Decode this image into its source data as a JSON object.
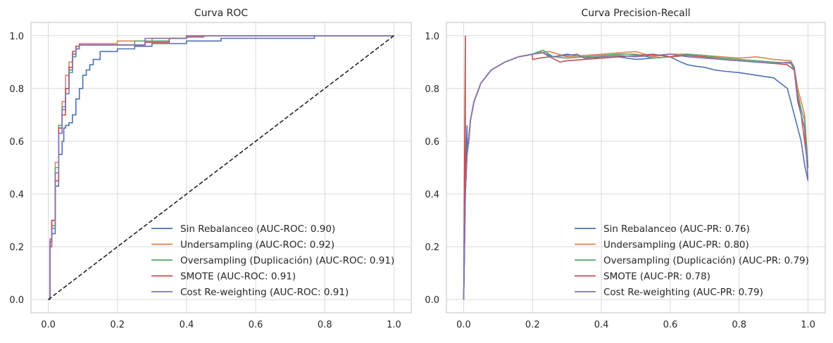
{
  "colors": {
    "blue": "#4c72b0",
    "orange": "#dd8452",
    "green": "#55a868",
    "red": "#c44e52",
    "purple": "#8172b3",
    "grid": "#d9d9d9",
    "diagonal": "#222222"
  },
  "chart_data": [
    {
      "type": "line",
      "title": "Curva ROC",
      "xlabel": "",
      "ylabel": "",
      "xlim": [
        -0.05,
        1.05
      ],
      "ylim": [
        -0.05,
        1.05
      ],
      "xticks": [
        "0.0",
        "0.2",
        "0.4",
        "0.6",
        "0.8",
        "1.0"
      ],
      "yticks": [
        "0.0",
        "0.2",
        "0.4",
        "0.6",
        "0.8",
        "1.0"
      ],
      "grid": true,
      "legend_position": "lower-right",
      "diagonal_reference": true,
      "series": [
        {
          "name": "Sin Rebalanceo (AUC-ROC: 0.90)",
          "color_key": "blue",
          "x": [
            0,
            0.005,
            0.005,
            0.01,
            0.01,
            0.02,
            0.02,
            0.03,
            0.03,
            0.04,
            0.04,
            0.045,
            0.045,
            0.05,
            0.05,
            0.06,
            0.06,
            0.07,
            0.07,
            0.08,
            0.08,
            0.09,
            0.09,
            0.1,
            0.1,
            0.11,
            0.11,
            0.12,
            0.12,
            0.13,
            0.13,
            0.15,
            0.15,
            0.2,
            0.2,
            0.25,
            0.25,
            0.3,
            0.3,
            0.4,
            0.4,
            0.5,
            0.5,
            0.77,
            0.77,
            1.0
          ],
          "y": [
            0,
            0,
            0.23,
            0.23,
            0.25,
            0.25,
            0.43,
            0.43,
            0.55,
            0.55,
            0.6,
            0.6,
            0.65,
            0.65,
            0.66,
            0.66,
            0.67,
            0.67,
            0.7,
            0.7,
            0.76,
            0.76,
            0.8,
            0.8,
            0.85,
            0.85,
            0.87,
            0.87,
            0.89,
            0.89,
            0.91,
            0.91,
            0.94,
            0.94,
            0.95,
            0.95,
            0.96,
            0.96,
            0.97,
            0.97,
            0.98,
            0.98,
            0.99,
            0.99,
            1.0,
            1.0
          ]
        },
        {
          "name": "Undersampling (AUC-ROC: 0.92)",
          "color_key": "orange",
          "x": [
            0,
            0.005,
            0.005,
            0.01,
            0.01,
            0.02,
            0.02,
            0.03,
            0.03,
            0.04,
            0.04,
            0.05,
            0.05,
            0.06,
            0.06,
            0.07,
            0.07,
            0.08,
            0.08,
            0.09,
            0.09,
            0.2,
            0.2,
            0.3,
            0.3,
            0.4,
            0.4,
            1.0
          ],
          "y": [
            0,
            0,
            0.23,
            0.23,
            0.3,
            0.3,
            0.52,
            0.52,
            0.65,
            0.65,
            0.75,
            0.75,
            0.85,
            0.85,
            0.9,
            0.9,
            0.93,
            0.93,
            0.95,
            0.95,
            0.97,
            0.97,
            0.98,
            0.98,
            0.99,
            0.99,
            1.0,
            1.0
          ]
        },
        {
          "name": "Oversampling (Duplicación) (AUC-ROC: 0.91)",
          "color_key": "green",
          "x": [
            0,
            0.005,
            0.005,
            0.01,
            0.01,
            0.02,
            0.02,
            0.03,
            0.03,
            0.04,
            0.04,
            0.05,
            0.05,
            0.06,
            0.06,
            0.07,
            0.07,
            0.08,
            0.08,
            0.09,
            0.09,
            0.25,
            0.25,
            0.35,
            0.35,
            0.4,
            0.4,
            1.0
          ],
          "y": [
            0,
            0,
            0.22,
            0.22,
            0.28,
            0.28,
            0.5,
            0.5,
            0.66,
            0.66,
            0.73,
            0.73,
            0.8,
            0.8,
            0.86,
            0.86,
            0.92,
            0.92,
            0.95,
            0.95,
            0.965,
            0.965,
            0.98,
            0.98,
            0.99,
            0.99,
            1.0,
            1.0
          ]
        },
        {
          "name": "SMOTE (AUC-ROC: 0.91)",
          "color_key": "red",
          "x": [
            0,
            0.005,
            0.005,
            0.01,
            0.01,
            0.02,
            0.02,
            0.03,
            0.03,
            0.04,
            0.04,
            0.05,
            0.05,
            0.06,
            0.06,
            0.07,
            0.07,
            0.08,
            0.08,
            0.09,
            0.09,
            0.28,
            0.28,
            0.35,
            0.35,
            0.4,
            0.4,
            0.45,
            0.45,
            1.0
          ],
          "y": [
            0,
            0,
            0.2,
            0.2,
            0.3,
            0.3,
            0.45,
            0.45,
            0.65,
            0.65,
            0.7,
            0.7,
            0.8,
            0.8,
            0.88,
            0.88,
            0.94,
            0.94,
            0.96,
            0.96,
            0.965,
            0.965,
            0.975,
            0.975,
            0.99,
            0.99,
            0.995,
            0.995,
            1.0,
            1.0
          ]
        },
        {
          "name": "Cost Re-weighting (AUC-ROC: 0.91)",
          "color_key": "purple",
          "x": [
            0,
            0.005,
            0.005,
            0.01,
            0.01,
            0.02,
            0.02,
            0.03,
            0.03,
            0.04,
            0.04,
            0.05,
            0.05,
            0.06,
            0.06,
            0.07,
            0.07,
            0.08,
            0.08,
            0.09,
            0.09,
            0.28,
            0.28,
            0.4,
            0.4,
            1.0
          ],
          "y": [
            0,
            0,
            0.22,
            0.22,
            0.27,
            0.27,
            0.48,
            0.48,
            0.63,
            0.63,
            0.72,
            0.72,
            0.78,
            0.78,
            0.87,
            0.87,
            0.93,
            0.93,
            0.95,
            0.95,
            0.965,
            0.965,
            0.99,
            0.99,
            1.0,
            1.0
          ]
        }
      ]
    },
    {
      "type": "line",
      "title": "Curva Precision-Recall",
      "xlabel": "",
      "ylabel": "",
      "xlim": [
        -0.05,
        1.05
      ],
      "ylim": [
        -0.05,
        1.05
      ],
      "xticks": [
        "0.0",
        "0.2",
        "0.4",
        "0.6",
        "0.8",
        "1.0"
      ],
      "yticks": [
        "0.0",
        "0.2",
        "0.4",
        "0.6",
        "0.8",
        "1.0"
      ],
      "grid": true,
      "legend_position": "lower-right",
      "diagonal_reference": false,
      "series": [
        {
          "name": "Sin Rebalanceo (AUC-PR: 0.76)",
          "color_key": "blue",
          "x": [
            0,
            0.005,
            0.01,
            0.01,
            0.015,
            0.02,
            0.03,
            0.05,
            0.08,
            0.12,
            0.16,
            0.2,
            0.22,
            0.24,
            0.26,
            0.3,
            0.35,
            0.4,
            0.45,
            0.5,
            0.55,
            0.6,
            0.63,
            0.65,
            0.67,
            0.7,
            0.73,
            0.76,
            0.8,
            0.85,
            0.9,
            0.92,
            0.94,
            0.95,
            0.96,
            0.97,
            0.98,
            0.99,
            1.0
          ],
          "y": [
            0,
            0.4,
            0.66,
            0.55,
            0.6,
            0.68,
            0.75,
            0.82,
            0.87,
            0.9,
            0.92,
            0.93,
            0.94,
            0.93,
            0.92,
            0.93,
            0.92,
            0.915,
            0.92,
            0.91,
            0.915,
            0.92,
            0.9,
            0.89,
            0.885,
            0.88,
            0.87,
            0.865,
            0.86,
            0.85,
            0.84,
            0.82,
            0.8,
            0.75,
            0.7,
            0.65,
            0.6,
            0.51,
            0.45
          ]
        },
        {
          "name": "Undersampling (AUC-PR: 0.80)",
          "color_key": "orange",
          "x": [
            0,
            0.005,
            0.01,
            0.02,
            0.03,
            0.05,
            0.08,
            0.12,
            0.16,
            0.2,
            0.22,
            0.25,
            0.3,
            0.35,
            0.4,
            0.45,
            0.5,
            0.55,
            0.6,
            0.65,
            0.7,
            0.75,
            0.8,
            0.85,
            0.9,
            0.95,
            0.96,
            0.97,
            0.98,
            0.99,
            1.0
          ],
          "y": [
            0,
            0.4,
            0.55,
            0.68,
            0.75,
            0.82,
            0.87,
            0.9,
            0.92,
            0.93,
            0.935,
            0.94,
            0.92,
            0.925,
            0.93,
            0.935,
            0.94,
            0.92,
            0.93,
            0.93,
            0.925,
            0.92,
            0.915,
            0.92,
            0.91,
            0.905,
            0.88,
            0.8,
            0.75,
            0.7,
            0.5
          ]
        },
        {
          "name": "Oversampling (Duplicación) (AUC-PR: 0.79)",
          "color_key": "green",
          "x": [
            0,
            0.005,
            0.01,
            0.02,
            0.03,
            0.05,
            0.08,
            0.12,
            0.16,
            0.2,
            0.23,
            0.26,
            0.3,
            0.35,
            0.4,
            0.45,
            0.5,
            0.55,
            0.6,
            0.65,
            0.7,
            0.75,
            0.8,
            0.85,
            0.9,
            0.95,
            0.96,
            0.97,
            0.98,
            0.99,
            1.0
          ],
          "y": [
            0,
            0.4,
            0.55,
            0.68,
            0.75,
            0.82,
            0.87,
            0.9,
            0.92,
            0.93,
            0.945,
            0.92,
            0.915,
            0.92,
            0.925,
            0.93,
            0.93,
            0.915,
            0.92,
            0.93,
            0.925,
            0.915,
            0.91,
            0.905,
            0.9,
            0.895,
            0.87,
            0.78,
            0.72,
            0.68,
            0.5
          ]
        },
        {
          "name": "SMOTE (AUC-PR: 0.78)",
          "color_key": "red",
          "x": [
            0,
            0.005,
            0.005,
            0.01,
            0.02,
            0.03,
            0.05,
            0.08,
            0.12,
            0.16,
            0.2,
            0.2,
            0.22,
            0.25,
            0.28,
            0.3,
            0.35,
            0.4,
            0.45,
            0.5,
            0.55,
            0.6,
            0.65,
            0.7,
            0.75,
            0.8,
            0.85,
            0.9,
            0.94,
            0.96,
            0.97,
            0.98,
            0.99,
            1.0
          ],
          "y": [
            0,
            1.0,
            0.4,
            0.55,
            0.68,
            0.75,
            0.82,
            0.87,
            0.9,
            0.92,
            0.93,
            0.91,
            0.915,
            0.92,
            0.9,
            0.905,
            0.91,
            0.915,
            0.92,
            0.925,
            0.93,
            0.92,
            0.925,
            0.92,
            0.91,
            0.905,
            0.9,
            0.895,
            0.89,
            0.87,
            0.75,
            0.7,
            0.6,
            0.5
          ]
        },
        {
          "name": "Cost Re-weighting (AUC-PR: 0.79)",
          "color_key": "purple",
          "x": [
            0,
            0.005,
            0.01,
            0.02,
            0.03,
            0.05,
            0.08,
            0.12,
            0.16,
            0.2,
            0.23,
            0.25,
            0.3,
            0.33,
            0.35,
            0.4,
            0.45,
            0.5,
            0.55,
            0.6,
            0.65,
            0.7,
            0.75,
            0.8,
            0.85,
            0.9,
            0.95,
            0.96,
            0.97,
            0.98,
            0.99,
            1.0
          ],
          "y": [
            0,
            0.4,
            0.55,
            0.68,
            0.75,
            0.82,
            0.87,
            0.9,
            0.92,
            0.93,
            0.935,
            0.92,
            0.925,
            0.93,
            0.915,
            0.92,
            0.925,
            0.92,
            0.925,
            0.93,
            0.92,
            0.915,
            0.91,
            0.905,
            0.9,
            0.895,
            0.9,
            0.88,
            0.77,
            0.7,
            0.65,
            0.46
          ]
        }
      ]
    }
  ]
}
